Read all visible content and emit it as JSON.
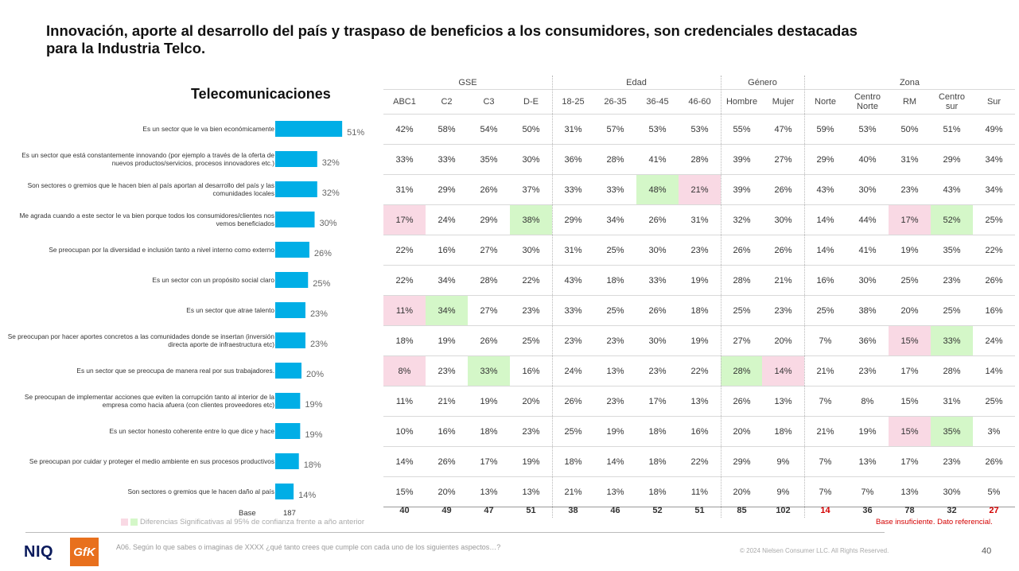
{
  "title": "Innovación, aporte al desarrollo del país y traspaso de beneficios a los consumidores, son credenciales destacadas para la Industria Telco.",
  "chart_data": {
    "type": "bar",
    "title": "Telecomunicaciones",
    "orientation": "horizontal",
    "bar_color": "#00aee6",
    "categories": [
      "Es un sector que le va bien económicamente",
      "Es un sector que está constantemente innovando (por ejemplo a través de la oferta de nuevos productos/servicios, procesos innovadores etc.)",
      "Son sectores o gremios que le hacen bien al país aportan al desarrollo del país y las comunidades locales",
      "Me agrada cuando a este sector le va bien porque todos los consumidores/clientes nos vemos beneficiados",
      "Se preocupan por la diversidad e inclusión tanto a nivel interno como externo",
      "Es un sector con un propósito social claro",
      "Es un sector que atrae talento",
      "Se preocupan por hacer aportes concretos a las comunidades donde se insertan (inversión directa aporte de infraestructura etc)",
      "Es un sector que se preocupa de manera real por sus trabajadores.",
      "Se preocupan de implementar acciones que eviten la corrupción tanto al interior de la empresa como hacia afuera (con clientes proveedores etc)",
      "Es un sector honesto coherente entre lo que dice y hace",
      "Se preocupan por cuidar y proteger el medio ambiente en sus procesos productivos",
      "Son sectores o gremios que le hacen daño al país"
    ],
    "values": [
      51,
      32,
      32,
      30,
      26,
      25,
      23,
      23,
      20,
      19,
      19,
      18,
      14
    ],
    "value_labels": [
      "51%",
      "32%",
      "32%",
      "30%",
      "26%",
      "25%",
      "23%",
      "23%",
      "20%",
      "19%",
      "19%",
      "18%",
      "14%"
    ],
    "base_label": "Base",
    "base_value": "187"
  },
  "table": {
    "groups": [
      {
        "label": "GSE",
        "span": 4
      },
      {
        "label": "Edad",
        "span": 4
      },
      {
        "label": "Género",
        "span": 2
      },
      {
        "label": "Zona",
        "span": 5
      }
    ],
    "columns": [
      "ABC1",
      "C2",
      "C3",
      "D-E",
      "18-25",
      "26-35",
      "36-45",
      "46-60",
      "Hombre",
      "Mujer",
      "Norte",
      "Centro\nNorte",
      "RM",
      "Centro\nsur",
      "Sur"
    ],
    "rows": [
      [
        "42%",
        "58%",
        "54%",
        "50%",
        "31%",
        "57%",
        "53%",
        "53%",
        "55%",
        "47%",
        "59%",
        "53%",
        "50%",
        "51%",
        "49%"
      ],
      [
        "33%",
        "33%",
        "35%",
        "30%",
        "36%",
        "28%",
        "41%",
        "28%",
        "39%",
        "27%",
        "29%",
        "40%",
        "31%",
        "29%",
        "34%"
      ],
      [
        "31%",
        "29%",
        "26%",
        "37%",
        "33%",
        "33%",
        "48%",
        "21%",
        "39%",
        "26%",
        "43%",
        "30%",
        "23%",
        "43%",
        "34%"
      ],
      [
        "17%",
        "24%",
        "29%",
        "38%",
        "29%",
        "34%",
        "26%",
        "31%",
        "32%",
        "30%",
        "14%",
        "44%",
        "17%",
        "52%",
        "25%"
      ],
      [
        "22%",
        "16%",
        "27%",
        "30%",
        "31%",
        "25%",
        "30%",
        "23%",
        "26%",
        "26%",
        "14%",
        "41%",
        "19%",
        "35%",
        "22%"
      ],
      [
        "22%",
        "34%",
        "28%",
        "22%",
        "43%",
        "18%",
        "33%",
        "19%",
        "28%",
        "21%",
        "16%",
        "30%",
        "25%",
        "23%",
        "26%"
      ],
      [
        "11%",
        "34%",
        "27%",
        "23%",
        "33%",
        "25%",
        "26%",
        "18%",
        "25%",
        "23%",
        "25%",
        "38%",
        "20%",
        "25%",
        "16%"
      ],
      [
        "18%",
        "19%",
        "26%",
        "25%",
        "23%",
        "23%",
        "30%",
        "19%",
        "27%",
        "20%",
        "7%",
        "36%",
        "15%",
        "33%",
        "24%"
      ],
      [
        "8%",
        "23%",
        "33%",
        "16%",
        "24%",
        "13%",
        "23%",
        "22%",
        "28%",
        "14%",
        "21%",
        "23%",
        "17%",
        "28%",
        "14%"
      ],
      [
        "11%",
        "21%",
        "19%",
        "20%",
        "26%",
        "23%",
        "17%",
        "13%",
        "26%",
        "13%",
        "7%",
        "8%",
        "15%",
        "31%",
        "25%"
      ],
      [
        "10%",
        "16%",
        "18%",
        "23%",
        "25%",
        "19%",
        "18%",
        "16%",
        "20%",
        "18%",
        "21%",
        "19%",
        "15%",
        "35%",
        "3%"
      ],
      [
        "14%",
        "26%",
        "17%",
        "19%",
        "18%",
        "14%",
        "18%",
        "22%",
        "29%",
        "9%",
        "7%",
        "13%",
        "17%",
        "23%",
        "26%"
      ],
      [
        "15%",
        "20%",
        "13%",
        "13%",
        "21%",
        "13%",
        "18%",
        "11%",
        "20%",
        "9%",
        "7%",
        "7%",
        "13%",
        "30%",
        "5%"
      ]
    ],
    "highlights": [
      {
        "row": 2,
        "col": 6,
        "type": "green"
      },
      {
        "row": 2,
        "col": 7,
        "type": "pink"
      },
      {
        "row": 3,
        "col": 0,
        "type": "pink"
      },
      {
        "row": 3,
        "col": 3,
        "type": "green"
      },
      {
        "row": 3,
        "col": 12,
        "type": "pink"
      },
      {
        "row": 3,
        "col": 13,
        "type": "green"
      },
      {
        "row": 6,
        "col": 0,
        "type": "pink"
      },
      {
        "row": 6,
        "col": 1,
        "type": "green"
      },
      {
        "row": 7,
        "col": 12,
        "type": "pink"
      },
      {
        "row": 7,
        "col": 13,
        "type": "green"
      },
      {
        "row": 8,
        "col": 0,
        "type": "pink"
      },
      {
        "row": 8,
        "col": 2,
        "type": "green"
      },
      {
        "row": 8,
        "col": 8,
        "type": "green"
      },
      {
        "row": 8,
        "col": 9,
        "type": "pink"
      },
      {
        "row": 10,
        "col": 12,
        "type": "pink"
      },
      {
        "row": 10,
        "col": 13,
        "type": "green"
      }
    ],
    "bases": [
      "40",
      "49",
      "47",
      "51",
      "38",
      "46",
      "52",
      "51",
      "85",
      "102",
      "14",
      "36",
      "78",
      "32",
      "27"
    ],
    "insufficient_base_cols": [
      10,
      14
    ]
  },
  "colors": {
    "pink": "#f9d9e4",
    "green": "#d4f7c8",
    "red": "#d40000",
    "bar": "#00aee6"
  },
  "legend": {
    "text": "Diferencias Significativas al 95% de confianza frente a año anterior"
  },
  "note": "Base insuficiente. Dato referencial.",
  "question": "A06. Según lo que sabes o imaginas de XXXX ¿qué tanto crees que cumple con cada uno de los siguientes aspectos…?",
  "copyright": "© 2024 Nielsen Consumer LLC. All Rights Reserved.",
  "page_number": "40",
  "logos": {
    "niq": "NIQ",
    "gfk": "GfK"
  }
}
